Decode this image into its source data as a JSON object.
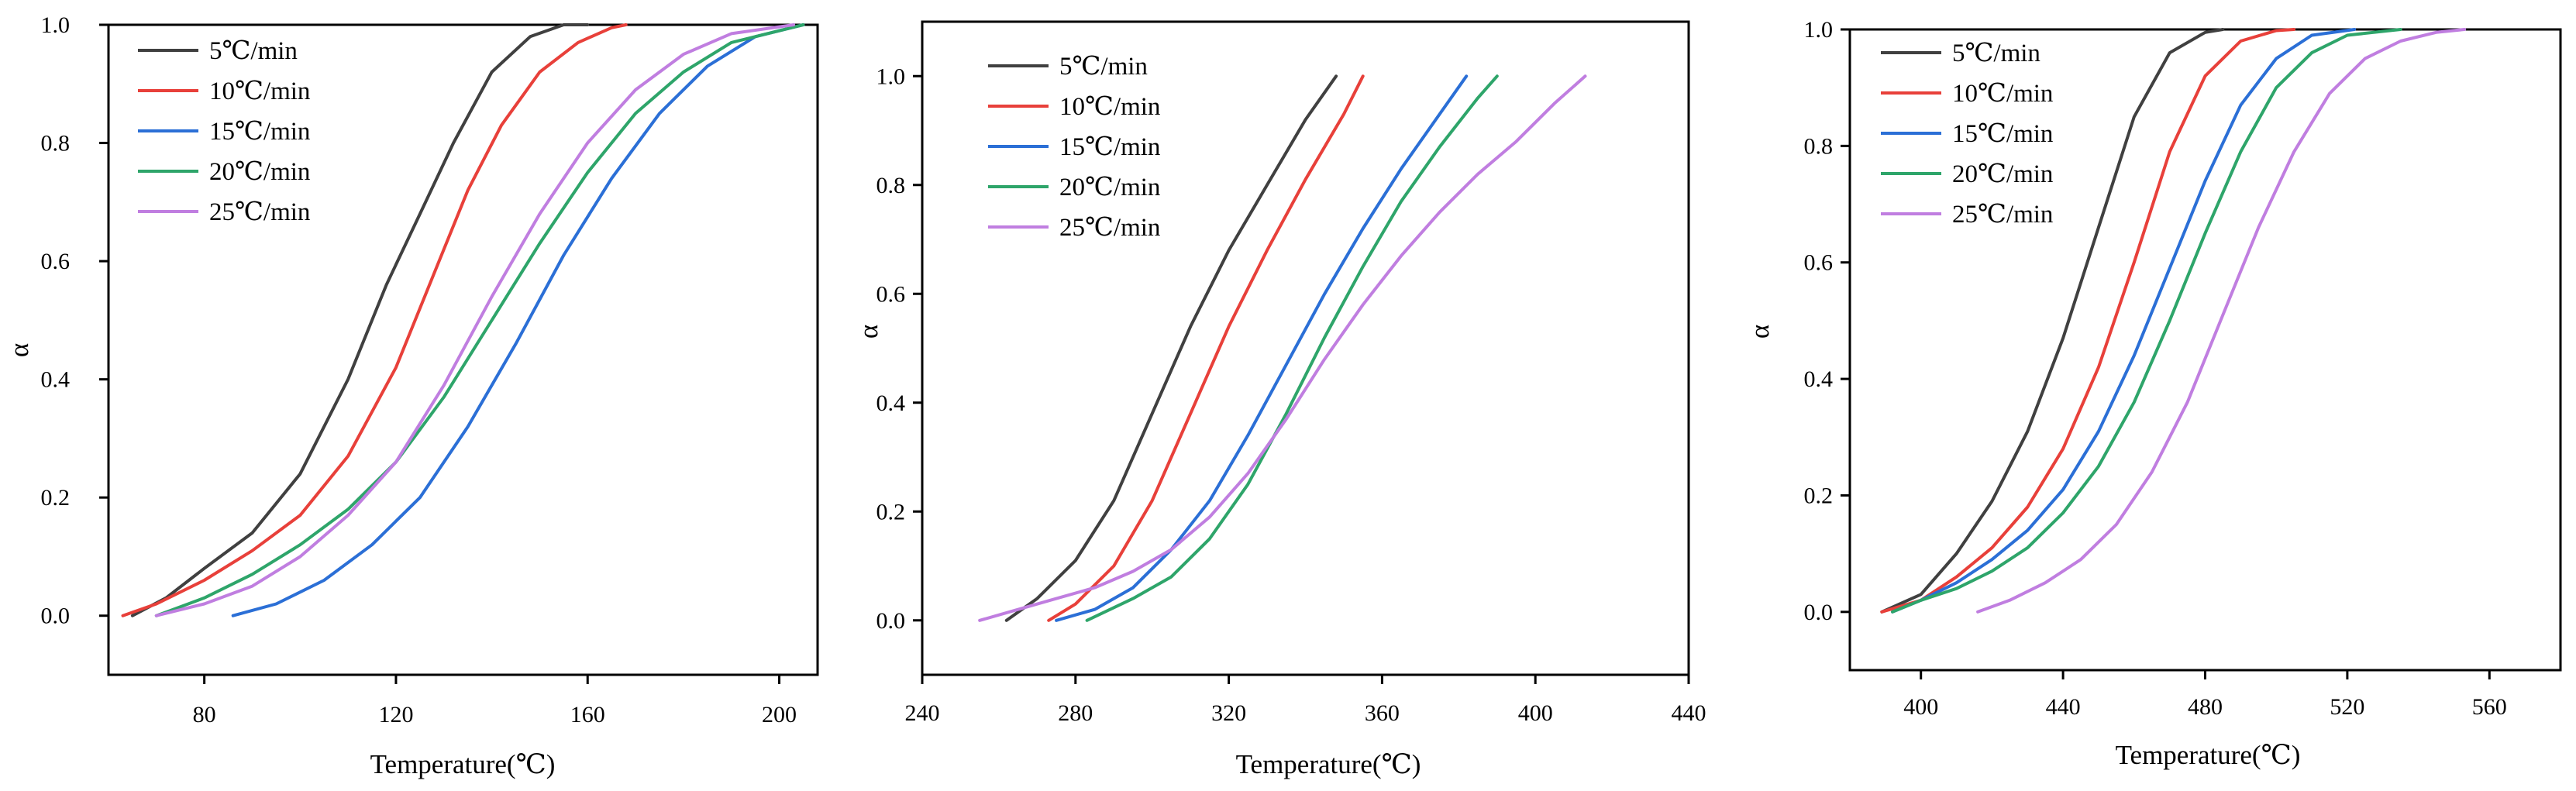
{
  "chart_data": [
    {
      "type": "line",
      "title": "",
      "xlabel": "Temperature(℃)",
      "ylabel": "α",
      "xlim": [
        60,
        208
      ],
      "ylim": [
        -0.1,
        1.0
      ],
      "xticks": [
        80,
        120,
        160,
        200
      ],
      "yticks": [
        0.0,
        0.2,
        0.4,
        0.6,
        0.8,
        1.0
      ],
      "ytick_labels": [
        "0.0",
        "0.2",
        "0.4",
        "0.6",
        "0.8",
        "1.0"
      ],
      "legend_position": "top-left",
      "series": [
        {
          "name": "5℃/min",
          "color": "#404040",
          "x": [
            65,
            72,
            80,
            90,
            100,
            110,
            118,
            125,
            132,
            140,
            148,
            155,
            160
          ],
          "y": [
            0.0,
            0.03,
            0.08,
            0.14,
            0.24,
            0.4,
            0.56,
            0.68,
            0.8,
            0.92,
            0.98,
            1.0,
            1.0
          ]
        },
        {
          "name": "10℃/min",
          "color": "#e8403a",
          "x": [
            63,
            70,
            80,
            90,
            100,
            110,
            120,
            128,
            135,
            142,
            150,
            158,
            165,
            168
          ],
          "y": [
            0.0,
            0.02,
            0.06,
            0.11,
            0.17,
            0.27,
            0.42,
            0.58,
            0.72,
            0.83,
            0.92,
            0.97,
            0.995,
            1.0
          ]
        },
        {
          "name": "15℃/min",
          "color": "#2b6fd6",
          "x": [
            86,
            95,
            105,
            115,
            125,
            135,
            145,
            155,
            165,
            175,
            185,
            195,
            205
          ],
          "y": [
            0.0,
            0.02,
            0.06,
            0.12,
            0.2,
            0.32,
            0.46,
            0.61,
            0.74,
            0.85,
            0.93,
            0.98,
            1.0
          ]
        },
        {
          "name": "20℃/min",
          "color": "#2ea56a",
          "x": [
            70,
            80,
            90,
            100,
            110,
            120,
            130,
            140,
            150,
            160,
            170,
            180,
            190,
            205
          ],
          "y": [
            0.0,
            0.03,
            0.07,
            0.12,
            0.18,
            0.26,
            0.37,
            0.5,
            0.63,
            0.75,
            0.85,
            0.92,
            0.97,
            1.0
          ]
        },
        {
          "name": "25℃/min",
          "color": "#c07ee0",
          "x": [
            70,
            80,
            90,
            100,
            110,
            120,
            130,
            140,
            150,
            160,
            170,
            180,
            190,
            203
          ],
          "y": [
            0.0,
            0.02,
            0.05,
            0.1,
            0.17,
            0.26,
            0.39,
            0.54,
            0.68,
            0.8,
            0.89,
            0.95,
            0.985,
            1.0
          ]
        }
      ]
    },
    {
      "type": "line",
      "title": "",
      "xlabel": "Temperature(℃)",
      "ylabel": "α",
      "xlim": [
        240,
        440
      ],
      "ylim": [
        -0.1,
        1.1
      ],
      "xticks": [
        240,
        280,
        320,
        360,
        400,
        440
      ],
      "yticks": [
        0.0,
        0.2,
        0.4,
        0.6,
        0.8,
        1.0
      ],
      "ytick_labels": [
        "0.0",
        "0.2",
        "0.4",
        "0.6",
        "0.8",
        "1.0"
      ],
      "legend_position": "top-left",
      "series": [
        {
          "name": "5℃/min",
          "color": "#404040",
          "x": [
            262,
            270,
            280,
            290,
            300,
            310,
            320,
            330,
            340,
            348
          ],
          "y": [
            0.0,
            0.04,
            0.11,
            0.22,
            0.38,
            0.54,
            0.68,
            0.8,
            0.92,
            1.0
          ]
        },
        {
          "name": "10℃/min",
          "color": "#e8403a",
          "x": [
            273,
            280,
            290,
            300,
            310,
            320,
            330,
            340,
            350,
            355
          ],
          "y": [
            0.0,
            0.03,
            0.1,
            0.22,
            0.38,
            0.54,
            0.68,
            0.81,
            0.93,
            1.0
          ]
        },
        {
          "name": "15℃/min",
          "color": "#2b6fd6",
          "x": [
            275,
            285,
            295,
            305,
            315,
            325,
            335,
            345,
            355,
            365,
            375,
            382
          ],
          "y": [
            0.0,
            0.02,
            0.06,
            0.13,
            0.22,
            0.34,
            0.47,
            0.6,
            0.72,
            0.83,
            0.93,
            1.0
          ]
        },
        {
          "name": "20℃/min",
          "color": "#2ea56a",
          "x": [
            283,
            295,
            305,
            315,
            325,
            335,
            345,
            355,
            365,
            375,
            385,
            390
          ],
          "y": [
            0.0,
            0.04,
            0.08,
            0.15,
            0.25,
            0.38,
            0.52,
            0.65,
            0.77,
            0.87,
            0.96,
            1.0
          ]
        },
        {
          "name": "25℃/min",
          "color": "#c07ee0",
          "x": [
            255,
            265,
            275,
            285,
            295,
            305,
            315,
            325,
            335,
            345,
            355,
            365,
            375,
            385,
            395,
            405,
            413
          ],
          "y": [
            0.0,
            0.02,
            0.04,
            0.06,
            0.09,
            0.13,
            0.19,
            0.27,
            0.37,
            0.48,
            0.58,
            0.67,
            0.75,
            0.82,
            0.88,
            0.95,
            1.0
          ]
        }
      ]
    },
    {
      "type": "line",
      "title": "",
      "xlabel": "Temperature(℃)",
      "ylabel": "α",
      "xlim": [
        380,
        580
      ],
      "ylim": [
        -0.1,
        1.0
      ],
      "xticks": [
        400,
        440,
        480,
        520,
        560
      ],
      "yticks": [
        0.0,
        0.2,
        0.4,
        0.6,
        0.8,
        1.0
      ],
      "ytick_labels": [
        "0.0",
        "0.2",
        "0.4",
        "0.6",
        "0.8",
        "1.0"
      ],
      "legend_position": "top-left",
      "series": [
        {
          "name": "5℃/min",
          "color": "#404040",
          "x": [
            389,
            400,
            410,
            420,
            430,
            440,
            450,
            460,
            470,
            480,
            485
          ],
          "y": [
            0.0,
            0.03,
            0.1,
            0.19,
            0.31,
            0.47,
            0.66,
            0.85,
            0.96,
            0.995,
            1.0
          ]
        },
        {
          "name": "10℃/min",
          "color": "#e8403a",
          "x": [
            389,
            400,
            410,
            420,
            430,
            440,
            450,
            460,
            470,
            480,
            490,
            500,
            505
          ],
          "y": [
            0.0,
            0.02,
            0.06,
            0.11,
            0.18,
            0.28,
            0.42,
            0.6,
            0.79,
            0.92,
            0.98,
            0.998,
            1.0
          ]
        },
        {
          "name": "15℃/min",
          "color": "#2b6fd6",
          "x": [
            392,
            400,
            410,
            420,
            430,
            440,
            450,
            460,
            470,
            480,
            490,
            500,
            510,
            522
          ],
          "y": [
            0.0,
            0.02,
            0.05,
            0.09,
            0.14,
            0.21,
            0.31,
            0.44,
            0.59,
            0.74,
            0.87,
            0.95,
            0.99,
            1.0
          ]
        },
        {
          "name": "20℃/min",
          "color": "#2ea56a",
          "x": [
            392,
            400,
            410,
            420,
            430,
            440,
            450,
            460,
            470,
            480,
            490,
            500,
            510,
            520,
            535
          ],
          "y": [
            0.0,
            0.02,
            0.04,
            0.07,
            0.11,
            0.17,
            0.25,
            0.36,
            0.5,
            0.65,
            0.79,
            0.9,
            0.96,
            0.99,
            1.0
          ]
        },
        {
          "name": "25℃/min",
          "color": "#c07ee0",
          "x": [
            416,
            425,
            435,
            445,
            455,
            465,
            475,
            485,
            495,
            505,
            515,
            525,
            535,
            545,
            553
          ],
          "y": [
            0.0,
            0.02,
            0.05,
            0.09,
            0.15,
            0.24,
            0.36,
            0.51,
            0.66,
            0.79,
            0.89,
            0.95,
            0.98,
            0.995,
            1.0
          ]
        }
      ]
    }
  ]
}
